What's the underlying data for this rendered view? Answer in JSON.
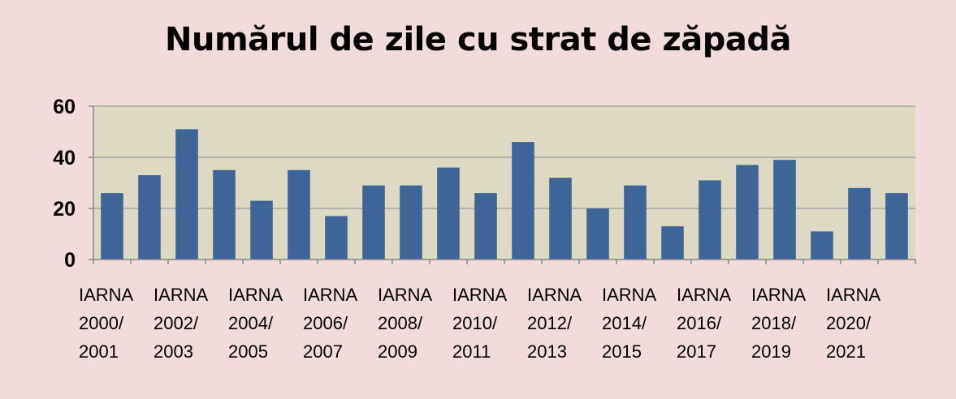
{
  "chart_data": {
    "type": "bar",
    "title": "Numărul de zile cu strat de zăpadă",
    "xlabel": "",
    "ylabel": "",
    "ylim": [
      0,
      60
    ],
    "yticks": [
      0,
      20,
      40,
      60
    ],
    "grid": true,
    "legend": "none",
    "colors": {
      "bar": "#3e6598",
      "plot_bg": "#ddd9c3",
      "page_bg": "#f2dcdb",
      "grid": "#a6a6a6"
    },
    "categories": [
      "IARNA 2000/ 2001",
      "",
      "IARNA 2002/ 2003",
      "",
      "IARNA 2004/ 2005",
      "",
      "IARNA 2006/ 2007",
      "",
      "IARNA 2008/ 2009",
      "",
      "IARNA 2010/ 2011",
      "",
      "IARNA 2012/ 2013",
      "",
      "IARNA 2014/ 2015",
      "",
      "IARNA 2016/ 2017",
      "",
      "IARNA 2018/ 2019",
      "",
      "IARNA 2020/ 2021",
      ""
    ],
    "tick_labels": [
      [
        "IARNA",
        "2000/",
        "2001"
      ],
      [
        "IARNA",
        "2002/",
        "2003"
      ],
      [
        "IARNA",
        "2004/",
        "2005"
      ],
      [
        "IARNA",
        "2006/",
        "2007"
      ],
      [
        "IARNA",
        "2008/",
        "2009"
      ],
      [
        "IARNA",
        "2010/",
        "2011"
      ],
      [
        "IARNA",
        "2012/",
        "2013"
      ],
      [
        "IARNA",
        "2014/",
        "2015"
      ],
      [
        "IARNA",
        "2016/",
        "2017"
      ],
      [
        "IARNA",
        "2018/",
        "2019"
      ],
      [
        "IARNA",
        "2020/",
        "2021"
      ]
    ],
    "values": [
      26,
      33,
      51,
      35,
      23,
      35,
      17,
      29,
      29,
      36,
      26,
      46,
      32,
      20,
      29,
      13,
      31,
      37,
      39,
      11,
      28,
      26
    ]
  }
}
